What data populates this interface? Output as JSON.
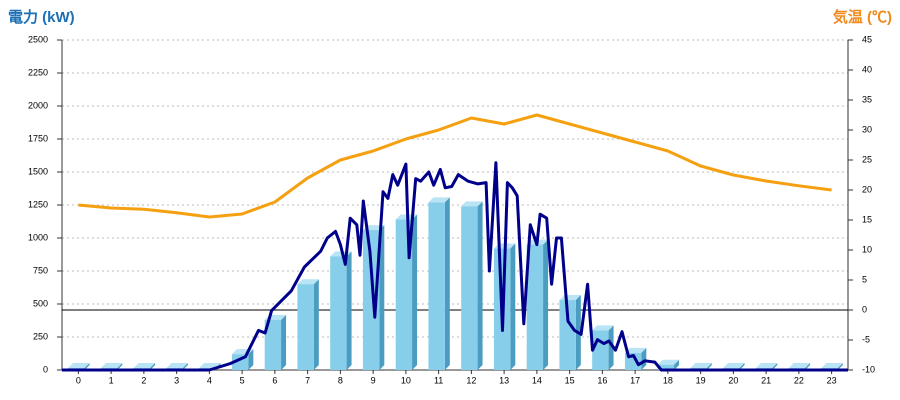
{
  "chart_data": {
    "type": "bar",
    "y_title": "電力 (kW)",
    "y2_title": "気温 (℃)",
    "categories": [
      "0",
      "1",
      "2",
      "3",
      "4",
      "5",
      "6",
      "7",
      "8",
      "9",
      "10",
      "11",
      "12",
      "13",
      "14",
      "15",
      "16",
      "17",
      "18",
      "19",
      "20",
      "21",
      "22",
      "23"
    ],
    "xlim": [
      -0.5,
      23.5
    ],
    "ylim": [
      0,
      2500
    ],
    "yticks": [
      0,
      250,
      500,
      750,
      1000,
      1250,
      1500,
      1750,
      2000,
      2250,
      2500
    ],
    "y2lim": [
      -10,
      45
    ],
    "y2ticks": [
      -10,
      -5,
      0,
      5,
      10,
      15,
      20,
      25,
      30,
      35,
      40,
      45
    ],
    "grid": true,
    "series": [
      {
        "type": "bar",
        "color": "#87ceeb",
        "values": [
          15,
          15,
          15,
          15,
          15,
          120,
          380,
          650,
          860,
          1060,
          1140,
          1270,
          1240,
          920,
          950,
          530,
          300,
          130,
          40,
          15,
          15,
          15,
          15,
          15
        ]
      },
      {
        "type": "line",
        "axis": "y2",
        "color": "#f5a010",
        "values": [
          17.5,
          17,
          16.8,
          16.2,
          15.5,
          16,
          18,
          22,
          25,
          26.5,
          28.5,
          30,
          32,
          31,
          32.5,
          31,
          29.5,
          28,
          26.5,
          24,
          22.5,
          21.5,
          20.7,
          20
        ]
      },
      {
        "type": "line",
        "color": "#00008b",
        "x": [
          -0.5,
          4,
          4.65,
          5.1,
          5.5,
          5.7,
          5.9,
          6.5,
          6.9,
          7.4,
          7.6,
          7.85,
          8.0,
          8.15,
          8.3,
          8.5,
          8.6,
          8.7,
          8.9,
          9.05,
          9.3,
          9.45,
          9.6,
          9.75,
          10.0,
          10.1,
          10.3,
          10.45,
          10.7,
          10.85,
          11.05,
          11.2,
          11.4,
          11.6,
          11.9,
          12.2,
          12.45,
          12.55,
          12.75,
          12.95,
          13.1,
          13.25,
          13.4,
          13.6,
          13.8,
          14.0,
          14.1,
          14.3,
          14.45,
          14.6,
          14.75,
          14.95,
          15.15,
          15.35,
          15.55,
          15.7,
          15.85,
          16.05,
          16.2,
          16.4,
          16.6,
          16.8,
          16.95,
          17.1,
          17.3,
          17.6,
          17.8,
          23.5
        ],
        "values": [
          0,
          0,
          50,
          100,
          300,
          280,
          450,
          600,
          780,
          900,
          1000,
          1050,
          950,
          800,
          1150,
          1100,
          870,
          1280,
          900,
          400,
          1350,
          1300,
          1480,
          1400,
          1560,
          850,
          1450,
          1430,
          1500,
          1400,
          1520,
          1380,
          1390,
          1480,
          1430,
          1410,
          1420,
          750,
          1570,
          300,
          1420,
          1380,
          1320,
          350,
          1100,
          950,
          1180,
          1150,
          650,
          1000,
          1000,
          370,
          300,
          270,
          650,
          150,
          230,
          200,
          220,
          150,
          290,
          100,
          110,
          40,
          70,
          60,
          0,
          0
        ]
      }
    ]
  }
}
